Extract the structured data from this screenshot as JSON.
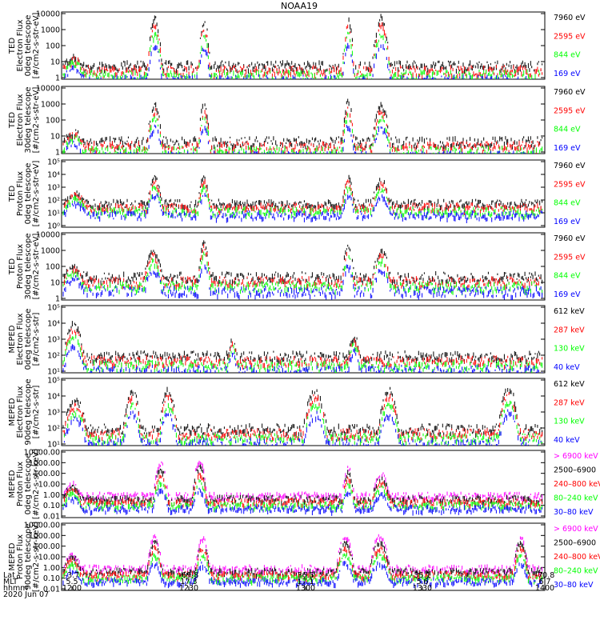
{
  "title": "NOAA19",
  "date": "2020 Jun 07",
  "colors": {
    "black": "#000000",
    "red": "#ff0000",
    "green": "#00ff00",
    "blue": "#0000ff",
    "magenta": "#ff00ff"
  },
  "footer": {
    "rows": [
      {
        "label": "Lat",
        "values": [
          "-3.7",
          "-69.8",
          "36.5",
          "35.1",
          "-70.8"
        ]
      },
      {
        "label": "MLT",
        "values": [
          "5.5",
          "17.3",
          "17.1",
          "5.6",
          "6.7"
        ]
      },
      {
        "label": "hhmm",
        "values": [
          "1200",
          "1230",
          "1300",
          "1330",
          "1400"
        ]
      }
    ]
  },
  "chart_data": [
    {
      "type": "scatter",
      "ylabel": [
        "TED",
        "Electron Flux",
        "0deg telescope",
        "[#/cm2-s-str-eV]"
      ],
      "yticks": [
        "10000",
        "1000",
        "100",
        "10",
        "1"
      ],
      "ylog": [
        0,
        4
      ],
      "legend": [
        {
          "text": "7960 eV",
          "color": "#000000"
        },
        {
          "text": "2595 eV",
          "color": "#ff0000"
        },
        {
          "text": "844 eV",
          "color": "#00ff00"
        },
        {
          "text": "169 eV",
          "color": "#0000ff"
        }
      ],
      "bursts": [
        [
          0.0,
          0.07,
          1.3
        ],
        [
          0.28,
          0.33,
          3.8
        ],
        [
          0.45,
          0.49,
          3.6
        ],
        [
          0.93,
          0.97,
          3.8
        ],
        [
          1.03,
          1.09,
          3.8
        ]
      ],
      "base": 0.8
    },
    {
      "type": "scatter",
      "ylabel": [
        "TED",
        "Electron Flux",
        "30deg telescope",
        "[#/cm2-s-str-eV]"
      ],
      "yticks": [
        "10000",
        "1000",
        "100",
        "10",
        "1"
      ],
      "ylog": [
        0,
        4
      ],
      "legend": [
        {
          "text": "7960 eV",
          "color": "#000000"
        },
        {
          "text": "2595 eV",
          "color": "#ff0000"
        },
        {
          "text": "844 eV",
          "color": "#00ff00"
        },
        {
          "text": "169 eV",
          "color": "#0000ff"
        }
      ],
      "bursts": [
        [
          0.0,
          0.07,
          1.3
        ],
        [
          0.28,
          0.33,
          3.0
        ],
        [
          0.45,
          0.49,
          3.0
        ],
        [
          0.93,
          0.97,
          3.2
        ],
        [
          1.03,
          1.09,
          3.0
        ]
      ],
      "base": 0.7
    },
    {
      "type": "scatter",
      "ylabel": [
        "TED",
        "Proton Flux",
        "0deg telescope",
        "[#/cm2-s-str-eV]"
      ],
      "yticks": [
        "10⁵",
        "10⁴",
        "10³",
        "10²",
        "10¹",
        "10⁰"
      ],
      "ylog": [
        0,
        5
      ],
      "legend": [
        {
          "text": "7960 eV",
          "color": "#000000"
        },
        {
          "text": "2595 eV",
          "color": "#ff0000"
        },
        {
          "text": "844 eV",
          "color": "#00ff00"
        },
        {
          "text": "169 eV",
          "color": "#0000ff"
        }
      ],
      "bursts": [
        [
          0.0,
          0.08,
          2.6
        ],
        [
          0.28,
          0.33,
          3.8
        ],
        [
          0.45,
          0.49,
          3.9
        ],
        [
          0.93,
          0.97,
          3.8
        ],
        [
          1.03,
          1.09,
          3.6
        ]
      ],
      "base": 1.8
    },
    {
      "type": "scatter",
      "ylabel": [
        "TED",
        "Proton Flux",
        "30deg telescope",
        "[#/cm2-s-str-eV]"
      ],
      "yticks": [
        "10000",
        "1000",
        "100",
        "10",
        "1"
      ],
      "ylog": [
        0,
        4
      ],
      "legend": [
        {
          "text": "7960 eV",
          "color": "#000000"
        },
        {
          "text": "2595 eV",
          "color": "#ff0000"
        },
        {
          "text": "844 eV",
          "color": "#00ff00"
        },
        {
          "text": "169 eV",
          "color": "#0000ff"
        }
      ],
      "bursts": [
        [
          0.0,
          0.07,
          2.0
        ],
        [
          0.27,
          0.33,
          3.0
        ],
        [
          0.45,
          0.49,
          3.6
        ],
        [
          0.93,
          0.97,
          3.4
        ],
        [
          1.03,
          1.09,
          3.0
        ]
      ],
      "base": 1.4
    },
    {
      "type": "scatter",
      "ylabel": [
        "MEPED",
        "Electron Flux",
        "0deg telescope",
        "[#/cm2-s-str]"
      ],
      "yticks": [
        "10⁵",
        "10⁴",
        "10³",
        "10²",
        "10¹"
      ],
      "ylog": [
        1,
        5
      ],
      "legend": [
        {
          "text": "612 keV",
          "color": "#000000"
        },
        {
          "text": "287 keV",
          "color": "#ff0000"
        },
        {
          "text": "130 keV",
          "color": "#00ff00"
        },
        {
          "text": "40 keV",
          "color": "#0000ff"
        }
      ],
      "bursts": [
        [
          0.0,
          0.07,
          4.0
        ],
        [
          0.55,
          0.58,
          3.0
        ],
        [
          0.95,
          0.99,
          3.2
        ]
      ],
      "base": 2.0
    },
    {
      "type": "scatter",
      "ylabel": [
        "MEPED",
        "Electron Flux",
        "90deg telescope",
        "[#/cm2-s-str]"
      ],
      "yticks": [
        "10⁵",
        "10⁴",
        "10³",
        "10²",
        "10¹"
      ],
      "ylog": [
        1,
        5
      ],
      "legend": [
        {
          "text": "612 keV",
          "color": "#000000"
        },
        {
          "text": "287 keV",
          "color": "#ff0000"
        },
        {
          "text": "130 keV",
          "color": "#00ff00"
        },
        {
          "text": "40 keV",
          "color": "#0000ff"
        }
      ],
      "bursts": [
        [
          0.0,
          0.08,
          3.8
        ],
        [
          0.2,
          0.26,
          4.4
        ],
        [
          0.32,
          0.38,
          4.4
        ],
        [
          0.8,
          0.88,
          4.4
        ],
        [
          1.05,
          1.12,
          4.4
        ],
        [
          1.45,
          1.52,
          4.6
        ]
      ],
      "base": 2.0
    },
    {
      "type": "scatter",
      "ylabel": [
        "MEPED",
        "Proton Flux",
        "0deg telescope",
        "[#/cm2-s-str-keV]"
      ],
      "yticks": [
        "10000.00",
        "1000.00",
        "100.00",
        "10.00",
        "1.00",
        "0.10",
        "0.01"
      ],
      "ylog": [
        -2,
        4
      ],
      "legend": [
        {
          "text": "> 6900 keV",
          "color": "#ff00ff"
        },
        {
          "text": "2500–6900",
          "color": "#000000"
        },
        {
          "text": "240–800 keV",
          "color": "#ff0000"
        },
        {
          "text": "80–240 keV",
          "color": "#00ff00"
        },
        {
          "text": "30–80 keV",
          "color": "#0000ff"
        }
      ],
      "bursts": [
        [
          0.0,
          0.06,
          1.2
        ],
        [
          0.3,
          0.35,
          3.0
        ],
        [
          0.43,
          0.48,
          3.2
        ],
        [
          0.93,
          0.97,
          2.6
        ],
        [
          1.03,
          1.09,
          2.0
        ]
      ],
      "base": 0.0
    },
    {
      "type": "scatter",
      "ylabel": [
        "MEPED",
        "Proton Flux",
        "90deg telescope",
        "[#/cm2-s-str-keV]"
      ],
      "yticks": [
        "10000.00",
        "1000.00",
        "100.00",
        "10.00",
        "1.00",
        "0.10",
        "0.01"
      ],
      "ylog": [
        -2,
        4
      ],
      "legend": [
        {
          "text": "> 6900 keV",
          "color": "#ff00ff"
        },
        {
          "text": "2500–6900",
          "color": "#000000"
        },
        {
          "text": "240–800 keV",
          "color": "#ff0000"
        },
        {
          "text": "80–240 keV",
          "color": "#00ff00"
        },
        {
          "text": "30–80 keV",
          "color": "#0000ff"
        }
      ],
      "bursts": [
        [
          0.0,
          0.06,
          1.4
        ],
        [
          0.28,
          0.33,
          3.0
        ],
        [
          0.44,
          0.49,
          2.9
        ],
        [
          0.91,
          0.97,
          3.0
        ],
        [
          1.02,
          1.09,
          3.0
        ],
        [
          1.5,
          1.55,
          3.0
        ]
      ],
      "base": 0.0
    }
  ]
}
